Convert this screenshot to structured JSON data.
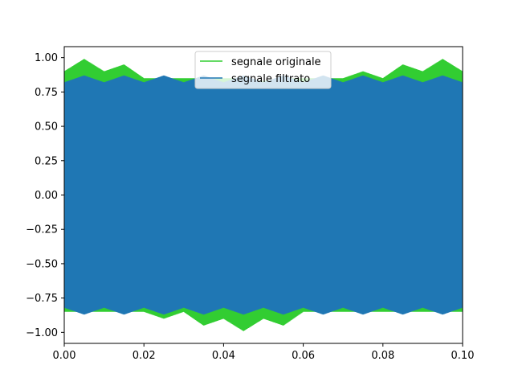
{
  "chart_data": {
    "type": "line",
    "title": "",
    "xlabel": "",
    "ylabel": "",
    "xlim": [
      0.0,
      0.1
    ],
    "ylim": [
      -1.08,
      1.08
    ],
    "xticks": [
      0.0,
      0.02,
      0.04,
      0.06,
      0.08,
      0.1
    ],
    "xtick_labels": [
      "0.00",
      "0.02",
      "0.04",
      "0.06",
      "0.08",
      "0.10"
    ],
    "yticks": [
      1.0,
      0.75,
      0.5,
      0.25,
      0.0,
      -0.25,
      -0.5,
      -0.75,
      -1.0
    ],
    "ytick_labels": [
      "1.00",
      "0.75",
      "0.50",
      "0.25",
      "0.00",
      "−0.25",
      "−0.50",
      "−0.75",
      "−1.00"
    ],
    "grid": false,
    "legend_position": "upper center",
    "series": [
      {
        "name": "segnale originale",
        "color": "#32cd32",
        "envelope_x": [
          0.0,
          0.005,
          0.01,
          0.015,
          0.02,
          0.025,
          0.03,
          0.035,
          0.04,
          0.045,
          0.05,
          0.055,
          0.06,
          0.065,
          0.07,
          0.075,
          0.08,
          0.085,
          0.09,
          0.095,
          0.1
        ],
        "envelope_upper": [
          0.9,
          0.99,
          0.9,
          0.95,
          0.85,
          0.85,
          0.85,
          0.85,
          0.85,
          0.85,
          0.83,
          0.85,
          0.85,
          0.85,
          0.85,
          0.9,
          0.85,
          0.95,
          0.9,
          0.99,
          0.9
        ],
        "envelope_lower": [
          -0.85,
          -0.85,
          -0.85,
          -0.85,
          -0.85,
          -0.9,
          -0.85,
          -0.95,
          -0.9,
          -0.99,
          -0.9,
          -0.95,
          -0.85,
          -0.85,
          -0.85,
          -0.85,
          -0.85,
          -0.85,
          -0.85,
          -0.85,
          -0.85
        ]
      },
      {
        "name": "segnale filtrato",
        "color": "#1f77b4",
        "envelope_x": [
          0.0,
          0.005,
          0.01,
          0.015,
          0.02,
          0.025,
          0.03,
          0.035,
          0.04,
          0.045,
          0.05,
          0.055,
          0.06,
          0.065,
          0.07,
          0.075,
          0.08,
          0.085,
          0.09,
          0.095,
          0.1
        ],
        "envelope_upper": [
          0.82,
          0.87,
          0.82,
          0.87,
          0.82,
          0.87,
          0.82,
          0.87,
          0.82,
          0.87,
          0.82,
          0.87,
          0.82,
          0.87,
          0.82,
          0.87,
          0.82,
          0.87,
          0.82,
          0.87,
          0.82
        ],
        "envelope_lower": [
          -0.82,
          -0.87,
          -0.82,
          -0.87,
          -0.82,
          -0.87,
          -0.82,
          -0.87,
          -0.82,
          -0.87,
          -0.82,
          -0.87,
          -0.82,
          -0.87,
          -0.82,
          -0.87,
          -0.82,
          -0.87,
          -0.82,
          -0.87,
          -0.82
        ]
      }
    ]
  }
}
